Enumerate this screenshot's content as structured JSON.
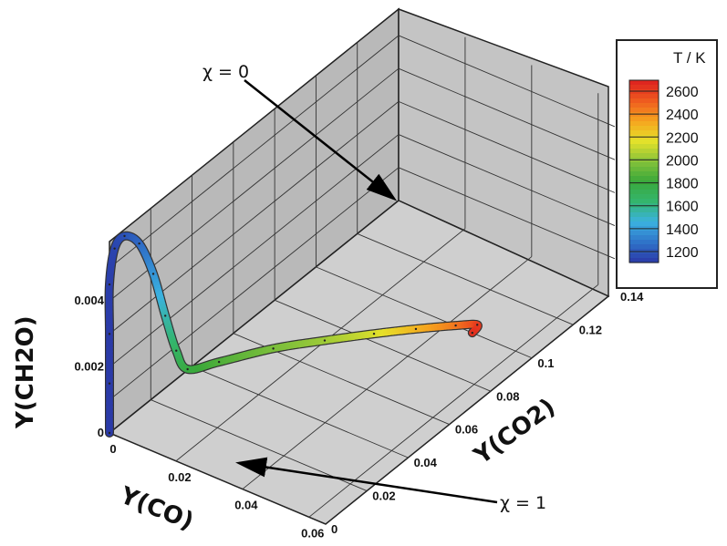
{
  "chart_data": {
    "type": "line",
    "subtype": "3d-trajectory",
    "axes": {
      "x": {
        "label": "Y(CO)",
        "range": [
          0,
          0.065
        ],
        "ticks": [
          "0",
          "0.02",
          "0.04",
          "0.06"
        ]
      },
      "y": {
        "label": "Y(CO2)",
        "range": [
          0,
          0.14
        ],
        "ticks": [
          "0",
          "0.02",
          "0.04",
          "0.06",
          "0.08",
          "0.1",
          "0.12",
          "0.14"
        ]
      },
      "z": {
        "label": "Y(CH2O)",
        "range": [
          0,
          0.0058
        ],
        "ticks": [
          "0",
          "0.002",
          "0.004"
        ]
      }
    },
    "grid": true,
    "colorbar": {
      "title": "T / K",
      "placement": "right",
      "ticks": [
        "2600",
        "2400",
        "2200",
        "2000",
        "1800",
        "1600",
        "1400",
        "1200"
      ],
      "range": [
        1150,
        2700
      ],
      "colors": [
        "#2a3aa8",
        "#2f73c9",
        "#3bb2e0",
        "#34b56e",
        "#3aa83a",
        "#86c23a",
        "#e6e22a",
        "#f6a21e",
        "#ee5a1f",
        "#dd1f1f"
      ]
    },
    "series": [
      {
        "points": [
          {
            "co": 0.0,
            "co2": 0.0,
            "ch2o": 0.0,
            "T": 1150
          },
          {
            "co": 0.0,
            "co2": 0.0,
            "ch2o": 0.0015,
            "T": 1150
          },
          {
            "co": 0.0,
            "co2": 0.0,
            "ch2o": 0.003,
            "T": 1150
          },
          {
            "co": 0.0,
            "co2": 0.0,
            "ch2o": 0.0045,
            "T": 1160
          },
          {
            "co": 0.0003,
            "co2": 0.002,
            "ch2o": 0.0055,
            "T": 1180
          },
          {
            "co": 0.0008,
            "co2": 0.006,
            "ch2o": 0.0057,
            "T": 1210
          },
          {
            "co": 0.0015,
            "co2": 0.012,
            "ch2o": 0.0052,
            "T": 1280
          },
          {
            "co": 0.002,
            "co2": 0.018,
            "ch2o": 0.004,
            "T": 1400
          },
          {
            "co": 0.0025,
            "co2": 0.023,
            "ch2o": 0.0025,
            "T": 1560
          },
          {
            "co": 0.0027,
            "co2": 0.028,
            "ch2o": 0.0012,
            "T": 1700
          },
          {
            "co": 0.003,
            "co2": 0.033,
            "ch2o": 0.0004,
            "T": 1800
          },
          {
            "co": 0.005,
            "co2": 0.045,
            "ch2o": 0.0001,
            "T": 1880
          },
          {
            "co": 0.012,
            "co2": 0.06,
            "ch2o": 5e-05,
            "T": 1980
          },
          {
            "co": 0.02,
            "co2": 0.072,
            "ch2o": 3e-05,
            "T": 2050
          },
          {
            "co": 0.028,
            "co2": 0.083,
            "ch2o": 2e-05,
            "T": 2150
          },
          {
            "co": 0.035,
            "co2": 0.092,
            "ch2o": 1e-05,
            "T": 2300
          },
          {
            "co": 0.042,
            "co2": 0.1,
            "ch2o": 1e-05,
            "T": 2450
          },
          {
            "co": 0.046,
            "co2": 0.104,
            "ch2o": 0.0,
            "T": 2600
          },
          {
            "co": 0.047,
            "co2": 0.1,
            "ch2o": 0.0,
            "T": 2650
          }
        ]
      }
    ],
    "annotations": [
      {
        "text": "χ = 0",
        "target": "start"
      },
      {
        "text": "χ = 1",
        "target": "end"
      }
    ]
  }
}
